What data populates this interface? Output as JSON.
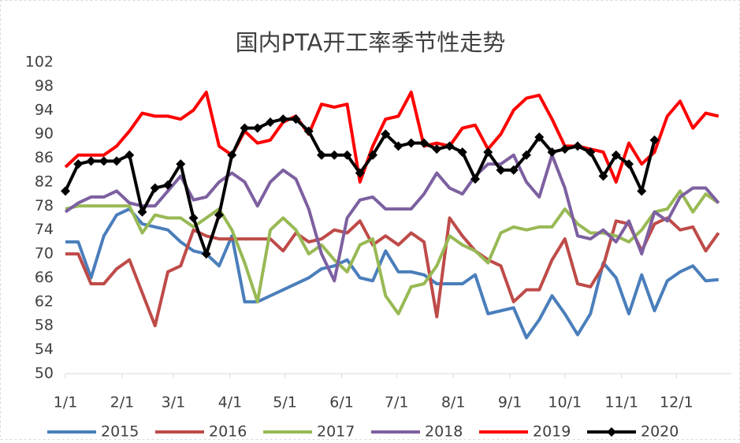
{
  "chart_data": {
    "type": "line",
    "title": "国内PTA开工率季节性走势",
    "x": [
      0,
      7,
      14,
      21,
      28,
      35,
      42,
      49,
      56,
      63,
      70,
      77,
      84,
      91,
      98,
      105,
      112,
      119,
      126,
      133,
      140,
      147,
      154,
      161,
      168,
      175,
      182,
      189,
      196,
      203,
      210,
      217,
      224,
      231,
      238,
      245,
      252,
      259,
      266,
      273,
      280,
      287,
      294,
      301,
      308,
      315,
      322,
      329,
      336,
      343,
      350,
      357
    ],
    "xlim": [
      0,
      364
    ],
    "xticks": [
      {
        "value": 0,
        "label": "1/1"
      },
      {
        "value": 31,
        "label": "2/1"
      },
      {
        "value": 59,
        "label": "3/1"
      },
      {
        "value": 90,
        "label": "4/1"
      },
      {
        "value": 120,
        "label": "5/1"
      },
      {
        "value": 151,
        "label": "6/1"
      },
      {
        "value": 181,
        "label": "7/1"
      },
      {
        "value": 212,
        "label": "8/1"
      },
      {
        "value": 243,
        "label": "9/1"
      },
      {
        "value": 273,
        "label": "10/1"
      },
      {
        "value": 304,
        "label": "11/1"
      },
      {
        "value": 334,
        "label": "12/1"
      }
    ],
    "ylim": [
      50,
      102
    ],
    "yticks": [
      50,
      54,
      58,
      62,
      66,
      70,
      74,
      78,
      82,
      86,
      90,
      94,
      98,
      102
    ],
    "grid": false,
    "legend": "bottom",
    "series": [
      {
        "name": "2015",
        "color": "#4a7ebb",
        "values": [
          72,
          72,
          66,
          73,
          76.5,
          77.5,
          75,
          74.5,
          74,
          72,
          70.5,
          70,
          68,
          73,
          62,
          62,
          63,
          64,
          65,
          66,
          67.5,
          68,
          69,
          66,
          65.5,
          70.5,
          67,
          67,
          66.5,
          65,
          65,
          65,
          66.5,
          60,
          60.5,
          61,
          56,
          59,
          63,
          60,
          56.5,
          60,
          68.5,
          66,
          60,
          66.5,
          60.5,
          65.5,
          67,
          68,
          65.5,
          65.7
        ]
      },
      {
        "name": "2016",
        "color": "#be4b48",
        "values": [
          70,
          70,
          65,
          65,
          67.5,
          69,
          63.5,
          58,
          67,
          68,
          74,
          73,
          72.5,
          72.5,
          72.5,
          72.5,
          72.5,
          70.5,
          73.5,
          72,
          72.5,
          74,
          73.5,
          75.5,
          71.5,
          73,
          71.5,
          73.5,
          72,
          59.5,
          76,
          73,
          70.5,
          69,
          68,
          62,
          64,
          64,
          69,
          72.5,
          65,
          64.5,
          68,
          75.5,
          75,
          70.5,
          75,
          76,
          74,
          74.5,
          70.5,
          73.5
        ]
      },
      {
        "name": "2017",
        "color": "#98b954",
        "values": [
          77.5,
          78,
          78,
          78,
          78,
          78,
          73.5,
          76.5,
          76,
          76,
          74.5,
          76,
          77.5,
          74,
          68.5,
          62,
          74,
          76,
          74,
          70,
          71.5,
          69,
          67,
          71.5,
          72.5,
          63,
          60,
          64.5,
          65,
          68,
          73,
          71.5,
          70.5,
          68.5,
          73.5,
          74.5,
          74,
          74.5,
          74.5,
          77.5,
          75,
          73.5,
          73.5,
          73,
          72,
          74,
          77,
          77.5,
          80.5,
          77,
          80,
          78.5
        ]
      },
      {
        "name": "2018",
        "color": "#7d60a0",
        "values": [
          77,
          78.5,
          79.5,
          79.5,
          80.5,
          78.5,
          78,
          78,
          80.5,
          83,
          79,
          79.5,
          82,
          83.5,
          82,
          78,
          82,
          84,
          82.5,
          77.5,
          70,
          65.5,
          76,
          79,
          79.5,
          77.5,
          77.5,
          77.5,
          80,
          83.5,
          81,
          80,
          83,
          85,
          85,
          86.5,
          82,
          79.5,
          86.5,
          81,
          73,
          72.5,
          74,
          72,
          75.5,
          70,
          77,
          75.5,
          79.5,
          81,
          81,
          78.5
        ]
      },
      {
        "name": "2019",
        "color": "#ff0000",
        "values": [
          84.5,
          86.5,
          86.5,
          86.5,
          88,
          90.5,
          93.5,
          93,
          93,
          92.5,
          94,
          97,
          88,
          86.5,
          90.5,
          88.5,
          89,
          92,
          93,
          90,
          95,
          94.5,
          95,
          82,
          88,
          92.5,
          93,
          97,
          88,
          88.5,
          88,
          91,
          91.5,
          87.5,
          90,
          94,
          96,
          96.5,
          92.5,
          88,
          88,
          87.5,
          87,
          82,
          88.5,
          85,
          87,
          93,
          95.5,
          91,
          93.5,
          93
        ]
      },
      {
        "name": "2020",
        "color": "#000000",
        "marker": "diamond",
        "values": [
          80.5,
          85,
          85.5,
          85.5,
          85.5,
          86.5,
          77,
          81,
          81.5,
          85,
          76,
          70,
          76.5,
          86.5,
          91,
          91,
          92,
          92.5,
          92.5,
          90.5,
          86.5,
          86.5,
          86.5,
          83.5,
          86.5,
          90,
          88,
          88.5,
          88.5,
          87.5,
          88,
          87,
          82.5,
          87,
          84,
          84,
          86.5,
          89.5,
          87,
          87.5,
          88,
          87,
          83,
          86.5,
          85,
          80.5,
          89,
          null,
          null,
          null,
          null,
          null
        ]
      }
    ]
  }
}
